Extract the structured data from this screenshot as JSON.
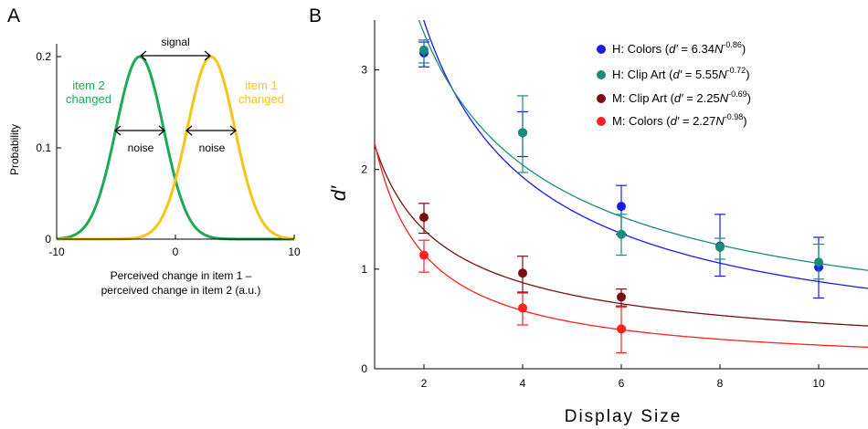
{
  "panel_a": {
    "letter": "A",
    "ylabel": "Probability",
    "xlabel_line1": "Perceived change in item 1 –",
    "xlabel_line2": "perceived change in item 2 (a.u.)",
    "annotations": {
      "signal": "signal",
      "noise_left": "noise",
      "noise_right": "noise",
      "item2_line1": "item 2",
      "item2_line2": "changed",
      "item1_line1": "item 1",
      "item1_line2": "changed"
    },
    "colors": {
      "item2": "#1faa55",
      "item1": "#f5c518"
    }
  },
  "panel_b": {
    "letter": "B",
    "legend_entries": [
      {
        "group": "H: Colors",
        "a": "6.34",
        "exp": "-0.86",
        "color": "#1a1aee"
      },
      {
        "group": "H: Clip Art",
        "a": "5.55",
        "exp": "-0.72",
        "color": "#1a8c7c"
      },
      {
        "group": "M: Clip Art",
        "a": "2.25",
        "exp": "-0.69",
        "color": "#7a0f10"
      },
      {
        "group": "M: Colors",
        "a": "2.27",
        "exp": "-0.98",
        "color": "#ff2020"
      }
    ],
    "legend_text": {
      "open": " (",
      "dprime": "d′",
      "eq": " = ",
      "N": "N",
      "close": ")"
    }
  },
  "chart_data": [
    {
      "type": "line",
      "panel": "A",
      "xlabel": "Perceived change in item 1 – perceived change in item 2 (a.u.)",
      "ylabel": "Probability",
      "xlim": [
        -10,
        10
      ],
      "ylim": [
        0,
        0.2
      ],
      "x_ticks": [
        "-10",
        "0",
        "10"
      ],
      "y_ticks": [
        "0",
        "0.1",
        "0.2"
      ],
      "series": [
        {
          "name": "item 2 changed",
          "curve": "gaussian",
          "mean": -3,
          "sd": 2,
          "peak": 0.2
        },
        {
          "name": "item 1 changed",
          "curve": "gaussian",
          "mean": 3,
          "sd": 2,
          "peak": 0.2
        }
      ]
    },
    {
      "type": "scatter",
      "panel": "B",
      "xlabel": "Display Size",
      "ylabel": "d′",
      "xlim": [
        1,
        11
      ],
      "ylim": [
        0,
        3.5
      ],
      "x_ticks": [
        2,
        4,
        6,
        8,
        10
      ],
      "y_ticks": [
        0,
        1,
        2,
        3
      ],
      "series": [
        {
          "name": "H: Colors",
          "fit": {
            "a": 6.34,
            "b": -0.86
          },
          "x": [
            2,
            4,
            6,
            8,
            10
          ],
          "y": [
            3.17,
            2.37,
            1.63,
            1.23,
            1.02
          ],
          "err_low": [
            3.03,
            2.13,
            1.35,
            0.93,
            0.71
          ],
          "err_high": [
            3.28,
            2.58,
            1.84,
            1.55,
            1.32
          ]
        },
        {
          "name": "H: Clip Art",
          "fit": {
            "a": 5.55,
            "b": -0.72
          },
          "x": [
            2,
            4,
            6,
            8,
            10
          ],
          "y": [
            3.2,
            2.37,
            1.35,
            1.22,
            1.07
          ],
          "err_low": [
            3.07,
            1.97,
            1.14,
            1.1,
            0.9
          ],
          "err_high": [
            3.3,
            2.74,
            1.55,
            1.31,
            1.25
          ]
        },
        {
          "name": "M: Clip Art",
          "fit": {
            "a": 2.25,
            "b": -0.69
          },
          "x": [
            2,
            4,
            6
          ],
          "y": [
            1.52,
            0.96,
            0.72
          ],
          "err_low": [
            1.36,
            0.77,
            0.63
          ],
          "err_high": [
            1.66,
            1.13,
            0.8
          ]
        },
        {
          "name": "M: Colors",
          "fit": {
            "a": 2.27,
            "b": -0.98
          },
          "x": [
            2,
            4,
            6
          ],
          "y": [
            1.14,
            0.61,
            0.4
          ],
          "err_low": [
            0.97,
            0.44,
            0.16
          ],
          "err_high": [
            1.29,
            0.76,
            0.62
          ]
        }
      ]
    }
  ]
}
